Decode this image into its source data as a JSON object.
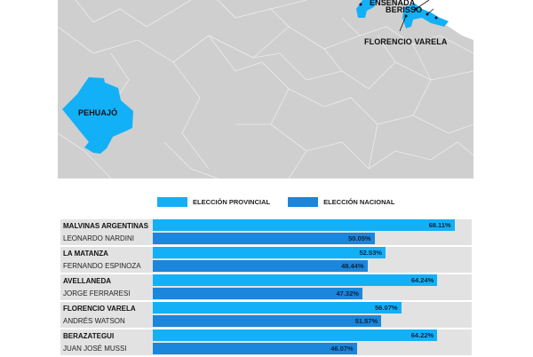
{
  "colors": {
    "provincial": "#12b0f7",
    "nacional": "#1a86dc",
    "map_bg": "#cfcfcf",
    "row_bg": "#e2e2e2"
  },
  "map": {
    "labels": {
      "pehuajo": "PEHUAJÓ",
      "ensenada": "ENSENADA",
      "berisso": "BERISSO",
      "florencio_varela": "FLORENCIO VARELA"
    }
  },
  "legend": {
    "provincial": "ELECCIÓN PROVINCIAL",
    "nacional": "ELECCIÓN NACIONAL"
  },
  "chart_data": {
    "type": "bar",
    "orientation": "horizontal",
    "title": "",
    "categories": [
      "MALVINAS ARGENTINAS / LEONARDO NARDINI",
      "LA MATANZA / FERNANDO ESPINOZA",
      "AVELLANEDA / JORGE FERRARESI",
      "FLORENCIO VARELA / ANDRÉS WATSON",
      "BERAZATEGUI / JUAN JOSÉ MUSSI"
    ],
    "series": [
      {
        "name": "ELECCIÓN PROVINCIAL",
        "values": [
          68.11,
          52.53,
          64.24,
          56.07,
          64.22
        ]
      },
      {
        "name": "ELECCIÓN NACIONAL",
        "values": [
          50.05,
          48.44,
          47.32,
          51.57,
          46.07
        ]
      }
    ],
    "xlim": [
      0,
      72
    ],
    "legend_position": "top",
    "grid": false
  },
  "rows": [
    {
      "municipio": "MALVINAS ARGENTINAS",
      "intendente": "LEONARDO NARDINI",
      "provincial": 68.11,
      "nacional": 50.05,
      "provincial_label": "68.11%",
      "nacional_label": "50.05%"
    },
    {
      "municipio": "LA MATANZA",
      "intendente": "FERNANDO ESPINOZA",
      "provincial": 52.53,
      "nacional": 48.44,
      "provincial_label": "52.53%",
      "nacional_label": "48.44%"
    },
    {
      "municipio": "AVELLANEDA",
      "intendente": "JORGE FERRARESI",
      "provincial": 64.24,
      "nacional": 47.32,
      "provincial_label": "64.24%",
      "nacional_label": "47.32%"
    },
    {
      "municipio": "FLORENCIO VARELA",
      "intendente": "ANDRÉS WATSON",
      "provincial": 56.07,
      "nacional": 51.57,
      "provincial_label": "56.07%",
      "nacional_label": "51.57%"
    },
    {
      "municipio": "BERAZATEGUI",
      "intendente": "JUAN JOSÉ MUSSI",
      "provincial": 64.22,
      "nacional": 46.07,
      "provincial_label": "64.22%",
      "nacional_label": "46.07%"
    }
  ]
}
